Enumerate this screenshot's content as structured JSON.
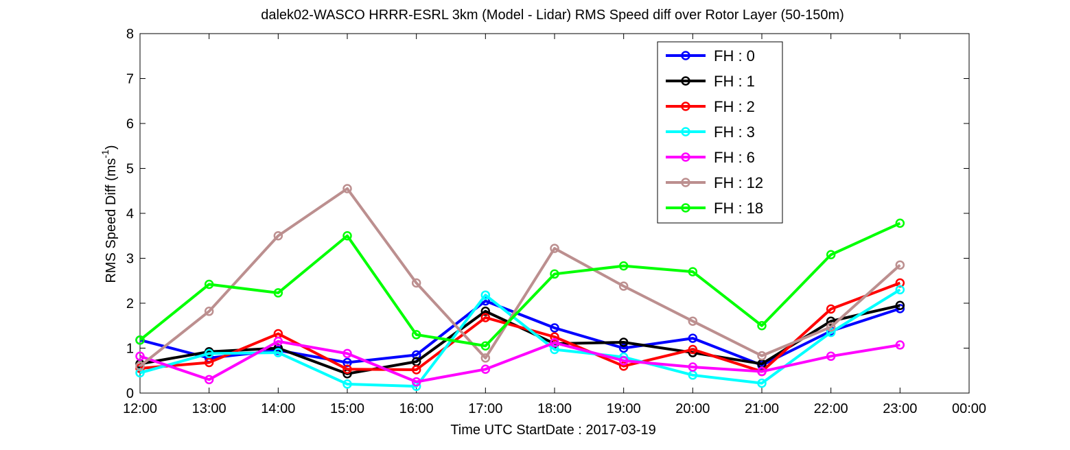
{
  "chart_data": {
    "type": "line",
    "title": "dalek02-WASCO HRRR-ESRL 3km (Model - Lidar) RMS Speed diff over Rotor Layer (50-150m)",
    "xlabel": "Time UTC    StartDate : 2017-03-19",
    "ylabel_main": "RMS Speed Diff (ms",
    "ylabel_sup": "-1",
    "ylabel_close": ")",
    "x_ticks": [
      "12:00",
      "13:00",
      "14:00",
      "15:00",
      "16:00",
      "17:00",
      "18:00",
      "19:00",
      "20:00",
      "21:00",
      "22:00",
      "23:00",
      "00:00"
    ],
    "y_ticks": [
      "0",
      "1",
      "2",
      "3",
      "4",
      "5",
      "6",
      "7",
      "8"
    ],
    "xlim": [
      12,
      24
    ],
    "ylim": [
      0,
      8
    ],
    "x": [
      12,
      13,
      14,
      15,
      16,
      17,
      18,
      19,
      20,
      21,
      22,
      23
    ],
    "legend_position": "top-right",
    "grid": false,
    "series": [
      {
        "name": "FH : 0",
        "color": "#0000ff",
        "values": [
          1.18,
          0.78,
          0.95,
          0.68,
          0.85,
          2.05,
          1.45,
          1.0,
          1.22,
          0.62,
          1.38,
          1.88
        ]
      },
      {
        "name": "FH : 1",
        "color": "#000000",
        "values": [
          0.65,
          0.92,
          1.0,
          0.43,
          0.7,
          1.82,
          1.1,
          1.13,
          0.9,
          0.65,
          1.6,
          1.95
        ]
      },
      {
        "name": "FH : 2",
        "color": "#ff0000",
        "values": [
          0.55,
          0.68,
          1.32,
          0.53,
          0.52,
          1.68,
          1.25,
          0.6,
          0.97,
          0.48,
          1.87,
          2.45
        ]
      },
      {
        "name": "FH : 3",
        "color": "#00ffff",
        "values": [
          0.45,
          0.88,
          0.9,
          0.2,
          0.15,
          2.18,
          0.97,
          0.8,
          0.4,
          0.22,
          1.35,
          2.3
        ]
      },
      {
        "name": "FH : 6",
        "color": "#ff00ff",
        "values": [
          0.82,
          0.3,
          1.15,
          0.88,
          0.25,
          0.53,
          1.12,
          0.72,
          0.58,
          0.48,
          0.82,
          1.07
        ]
      },
      {
        "name": "FH : 12",
        "color": "#bc8f8f",
        "values": [
          0.6,
          1.82,
          3.5,
          4.55,
          2.45,
          0.78,
          3.22,
          2.38,
          1.6,
          0.83,
          1.47,
          2.85
        ]
      },
      {
        "name": "FH : 18",
        "color": "#00ff00",
        "values": [
          1.18,
          2.42,
          2.23,
          3.5,
          1.3,
          1.05,
          2.65,
          2.83,
          2.7,
          1.5,
          3.08,
          3.78
        ]
      }
    ]
  }
}
